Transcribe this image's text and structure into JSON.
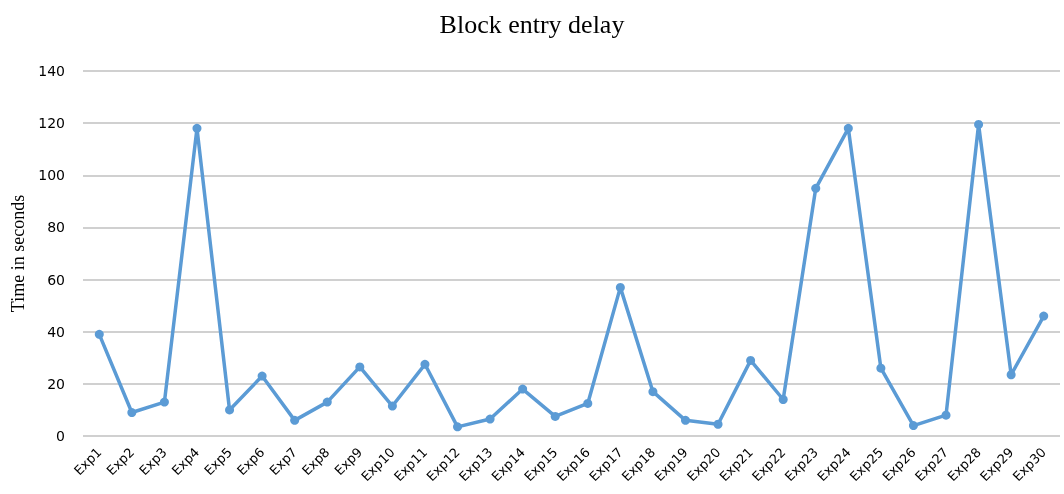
{
  "chart_data": {
    "type": "line",
    "title": "Block entry delay",
    "ylabel": "Time in seconds",
    "categories": [
      "Exp1",
      "Exp2",
      "Exp3",
      "Exp4",
      "Exp5",
      "Exp6",
      "Exp7",
      "Exp8",
      "Exp9",
      "Exp10",
      "Exp11",
      "Exp12",
      "Exp13",
      "Exp14",
      "Exp15",
      "Exp16",
      "Exp17",
      "Exp18",
      "Exp19",
      "Exp20",
      "Exp21",
      "Exp22",
      "Exp23",
      "Exp24",
      "Exp25",
      "Exp26",
      "Exp27",
      "Exp28",
      "Exp29",
      "Exp30"
    ],
    "series": [
      {
        "color": "#5b9bd5",
        "values": [
          39,
          9,
          13,
          118,
          10,
          23,
          6,
          13,
          26.5,
          11.5,
          27.5,
          3.5,
          6.5,
          18,
          7.5,
          12.5,
          57,
          17,
          6,
          4.5,
          29,
          14,
          95,
          118,
          26,
          4,
          8,
          119.5,
          23.5,
          46
        ]
      }
    ],
    "ylim": [
      0,
      140
    ],
    "yticks": [
      0,
      20,
      40,
      60,
      80,
      100,
      120,
      140
    ],
    "grid": "y",
    "marker": "circle",
    "line_style": "solid"
  }
}
